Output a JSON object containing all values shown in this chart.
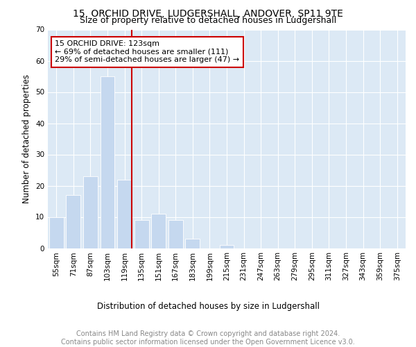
{
  "title1": "15, ORCHID DRIVE, LUDGERSHALL, ANDOVER, SP11 9TE",
  "title2": "Size of property relative to detached houses in Ludgershall",
  "xlabel": "Distribution of detached houses by size in Ludgershall",
  "ylabel": "Number of detached properties",
  "footer1": "Contains HM Land Registry data © Crown copyright and database right 2024.",
  "footer2": "Contains public sector information licensed under the Open Government Licence v3.0.",
  "bar_labels": [
    "55sqm",
    "71sqm",
    "87sqm",
    "103sqm",
    "119sqm",
    "135sqm",
    "151sqm",
    "167sqm",
    "183sqm",
    "199sqm",
    "215sqm",
    "231sqm",
    "247sqm",
    "263sqm",
    "279sqm",
    "295sqm",
    "311sqm",
    "327sqm",
    "343sqm",
    "359sqm",
    "375sqm"
  ],
  "bar_values": [
    10,
    17,
    23,
    55,
    22,
    9,
    11,
    9,
    3,
    0,
    1,
    0,
    0,
    0,
    0,
    0,
    0,
    0,
    0,
    0,
    0
  ],
  "bar_color": "#c5d8ef",
  "vline_color": "#cc0000",
  "vline_index": 4,
  "annotation_text": "15 ORCHID DRIVE: 123sqm\n← 69% of detached houses are smaller (111)\n29% of semi-detached houses are larger (47) →",
  "annotation_box_color": "#ffffff",
  "annotation_edge_color": "#cc0000",
  "ylim": [
    0,
    70
  ],
  "yticks": [
    0,
    10,
    20,
    30,
    40,
    50,
    60,
    70
  ],
  "plot_bg_color": "#dce9f5",
  "title_fontsize": 10,
  "subtitle_fontsize": 9,
  "axis_label_fontsize": 8.5,
  "tick_fontsize": 7.5,
  "annotation_fontsize": 8,
  "footer_fontsize": 7
}
